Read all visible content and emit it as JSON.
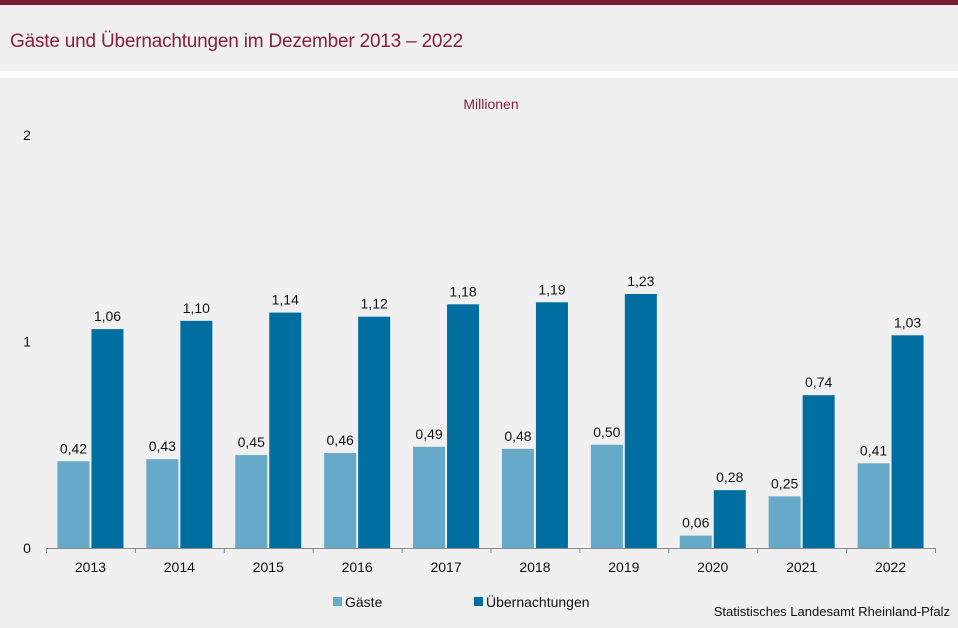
{
  "header": {
    "title": "Gäste und Übernachtungen im Dezember 2013 – 2022"
  },
  "footer": {
    "credit": "Statistisches Landesamt Rheinland-Pfalz"
  },
  "chart_data": {
    "type": "bar",
    "title": "Gäste und Übernachtungen im Dezember 2013 – 2022",
    "unit_label": "Millionen",
    "xlabel": "",
    "ylabel": "Millionen",
    "ylim": [
      0,
      2
    ],
    "yticks": [
      "0",
      "1",
      "2"
    ],
    "grid": false,
    "legend_position": "bottom",
    "categories": [
      "2013",
      "2014",
      "2015",
      "2016",
      "2017",
      "2018",
      "2019",
      "2020",
      "2021",
      "2022"
    ],
    "series": [
      {
        "name": "Gäste",
        "color": "#66a9c9",
        "values": [
          0.42,
          0.43,
          0.45,
          0.46,
          0.49,
          0.48,
          0.5,
          0.06,
          0.25,
          0.41
        ],
        "labels": [
          "0,42",
          "0,43",
          "0,45",
          "0,46",
          "0,49",
          "0,48",
          "0,50",
          "0,06",
          "0,25",
          "0,41"
        ]
      },
      {
        "name": "Übernachtungen",
        "color": "#006ea1",
        "values": [
          1.06,
          1.1,
          1.14,
          1.12,
          1.18,
          1.19,
          1.23,
          0.28,
          0.74,
          1.03
        ],
        "labels": [
          "1,06",
          "1,10",
          "1,14",
          "1,12",
          "1,18",
          "1,19",
          "1,23",
          "0,28",
          "0,74",
          "1,03"
        ]
      }
    ]
  }
}
